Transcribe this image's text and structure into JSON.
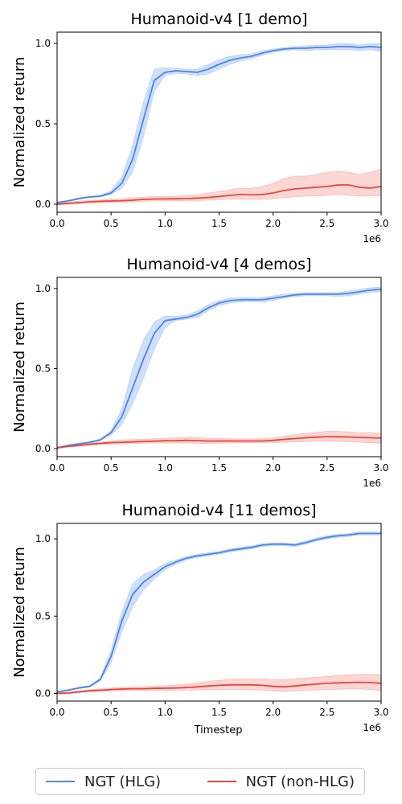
{
  "chart_data": [
    {
      "type": "line",
      "title": "Humanoid-v4 [1 demo]",
      "xlabel": "",
      "ylabel": "Normalized return",
      "x_offset_label": "1e6",
      "xlim": [
        0,
        3.0
      ],
      "ylim": [
        -0.05,
        1.07
      ],
      "xticks": [
        "0.0",
        "0.5",
        "1.0",
        "1.5",
        "2.0",
        "2.5",
        "3.0"
      ],
      "yticks": [
        "0.0",
        "0.5",
        "1.0"
      ],
      "series": [
        {
          "name": "NGT (HLG)",
          "x": [
            0,
            0.1,
            0.2,
            0.3,
            0.4,
            0.5,
            0.6,
            0.7,
            0.8,
            0.9,
            1.0,
            1.1,
            1.2,
            1.3,
            1.4,
            1.5,
            1.6,
            1.7,
            1.8,
            1.9,
            2.0,
            2.1,
            2.2,
            2.3,
            2.4,
            2.5,
            2.6,
            2.7,
            2.8,
            2.9,
            3.0
          ],
          "y": [
            0.01,
            0.02,
            0.035,
            0.045,
            0.05,
            0.07,
            0.13,
            0.28,
            0.53,
            0.77,
            0.82,
            0.83,
            0.825,
            0.82,
            0.84,
            0.87,
            0.895,
            0.91,
            0.92,
            0.94,
            0.955,
            0.965,
            0.97,
            0.97,
            0.975,
            0.975,
            0.98,
            0.98,
            0.975,
            0.98,
            0.975
          ],
          "lower": [
            0.005,
            0.015,
            0.03,
            0.04,
            0.045,
            0.06,
            0.1,
            0.2,
            0.42,
            0.7,
            0.8,
            0.815,
            0.81,
            0.8,
            0.81,
            0.84,
            0.87,
            0.89,
            0.905,
            0.925,
            0.945,
            0.955,
            0.96,
            0.955,
            0.96,
            0.96,
            0.96,
            0.96,
            0.955,
            0.96,
            0.95
          ],
          "upper": [
            0.015,
            0.025,
            0.04,
            0.05,
            0.055,
            0.085,
            0.17,
            0.37,
            0.64,
            0.84,
            0.85,
            0.845,
            0.84,
            0.84,
            0.87,
            0.9,
            0.92,
            0.93,
            0.935,
            0.955,
            0.965,
            0.975,
            0.98,
            0.985,
            0.99,
            0.99,
            1.0,
            1.0,
            0.99,
            1.0,
            1.0
          ]
        },
        {
          "name": "NGT (non-HLG)",
          "x": [
            0,
            0.1,
            0.2,
            0.3,
            0.4,
            0.5,
            0.6,
            0.7,
            0.8,
            0.9,
            1.0,
            1.1,
            1.2,
            1.3,
            1.4,
            1.5,
            1.6,
            1.7,
            1.8,
            1.9,
            2.0,
            2.1,
            2.2,
            2.3,
            2.4,
            2.5,
            2.6,
            2.7,
            2.8,
            2.9,
            3.0
          ],
          "y": [
            0.0,
            0.005,
            0.01,
            0.015,
            0.018,
            0.02,
            0.022,
            0.025,
            0.03,
            0.032,
            0.033,
            0.034,
            0.035,
            0.038,
            0.042,
            0.048,
            0.055,
            0.06,
            0.058,
            0.06,
            0.07,
            0.085,
            0.095,
            0.1,
            0.105,
            0.11,
            0.12,
            0.12,
            0.105,
            0.1,
            0.11
          ],
          "lower": [
            -0.005,
            0.0,
            0.003,
            0.008,
            0.01,
            0.01,
            0.012,
            0.015,
            0.018,
            0.02,
            0.02,
            0.02,
            0.022,
            0.023,
            0.025,
            0.028,
            0.03,
            0.032,
            0.03,
            0.03,
            0.035,
            0.04,
            0.045,
            0.05,
            0.05,
            0.055,
            0.06,
            0.055,
            0.05,
            0.05,
            0.055
          ],
          "upper": [
            0.005,
            0.01,
            0.02,
            0.025,
            0.028,
            0.032,
            0.035,
            0.04,
            0.045,
            0.048,
            0.05,
            0.05,
            0.055,
            0.06,
            0.07,
            0.08,
            0.09,
            0.1,
            0.1,
            0.11,
            0.13,
            0.16,
            0.175,
            0.175,
            0.185,
            0.2,
            0.205,
            0.2,
            0.185,
            0.2,
            0.22
          ]
        }
      ]
    },
    {
      "type": "line",
      "title": "Humanoid-v4 [4 demos]",
      "xlabel": "",
      "ylabel": "Normalized return",
      "x_offset_label": "1e6",
      "xlim": [
        0,
        3.0
      ],
      "ylim": [
        -0.05,
        1.07
      ],
      "xticks": [
        "0.0",
        "0.5",
        "1.0",
        "1.5",
        "2.0",
        "2.5",
        "3.0"
      ],
      "yticks": [
        "0.0",
        "0.5",
        "1.0"
      ],
      "series": [
        {
          "name": "NGT (HLG)",
          "x": [
            0,
            0.1,
            0.2,
            0.3,
            0.4,
            0.5,
            0.6,
            0.7,
            0.8,
            0.9,
            1.0,
            1.1,
            1.2,
            1.3,
            1.4,
            1.5,
            1.6,
            1.7,
            1.8,
            1.9,
            2.0,
            2.1,
            2.2,
            2.3,
            2.4,
            2.5,
            2.6,
            2.7,
            2.8,
            2.9,
            3.0
          ],
          "y": [
            0.005,
            0.02,
            0.03,
            0.04,
            0.055,
            0.1,
            0.2,
            0.38,
            0.56,
            0.72,
            0.8,
            0.81,
            0.82,
            0.84,
            0.88,
            0.91,
            0.925,
            0.93,
            0.93,
            0.93,
            0.94,
            0.95,
            0.96,
            0.965,
            0.965,
            0.965,
            0.965,
            0.97,
            0.98,
            0.99,
            0.995
          ],
          "lower": [
            0.0,
            0.015,
            0.025,
            0.035,
            0.05,
            0.085,
            0.15,
            0.28,
            0.44,
            0.62,
            0.76,
            0.8,
            0.81,
            0.82,
            0.86,
            0.895,
            0.91,
            0.915,
            0.92,
            0.915,
            0.925,
            0.94,
            0.95,
            0.955,
            0.955,
            0.955,
            0.95,
            0.955,
            0.965,
            0.975,
            0.98
          ],
          "upper": [
            0.01,
            0.025,
            0.035,
            0.045,
            0.06,
            0.115,
            0.25,
            0.5,
            0.68,
            0.79,
            0.83,
            0.825,
            0.835,
            0.86,
            0.9,
            0.925,
            0.94,
            0.945,
            0.945,
            0.945,
            0.955,
            0.965,
            0.97,
            0.975,
            0.975,
            0.975,
            0.975,
            0.985,
            0.995,
            1.005,
            1.01
          ]
        },
        {
          "name": "NGT (non-HLG)",
          "x": [
            0,
            0.1,
            0.2,
            0.3,
            0.4,
            0.5,
            0.6,
            0.7,
            0.8,
            0.9,
            1.0,
            1.1,
            1.2,
            1.3,
            1.4,
            1.5,
            1.6,
            1.7,
            1.8,
            1.9,
            2.0,
            2.1,
            2.2,
            2.3,
            2.4,
            2.5,
            2.6,
            2.7,
            2.8,
            2.9,
            3.0
          ],
          "y": [
            0.005,
            0.015,
            0.02,
            0.028,
            0.033,
            0.038,
            0.04,
            0.042,
            0.045,
            0.047,
            0.05,
            0.05,
            0.052,
            0.05,
            0.048,
            0.048,
            0.048,
            0.048,
            0.048,
            0.048,
            0.052,
            0.058,
            0.063,
            0.068,
            0.072,
            0.075,
            0.074,
            0.073,
            0.07,
            0.068,
            0.066
          ],
          "lower": [
            0.0,
            0.01,
            0.015,
            0.02,
            0.025,
            0.028,
            0.03,
            0.032,
            0.034,
            0.035,
            0.036,
            0.035,
            0.035,
            0.034,
            0.034,
            0.035,
            0.035,
            0.036,
            0.036,
            0.036,
            0.038,
            0.04,
            0.042,
            0.044,
            0.046,
            0.046,
            0.045,
            0.044,
            0.04,
            0.037,
            0.033
          ],
          "upper": [
            0.01,
            0.02,
            0.028,
            0.035,
            0.042,
            0.05,
            0.055,
            0.057,
            0.06,
            0.062,
            0.066,
            0.068,
            0.072,
            0.07,
            0.065,
            0.063,
            0.062,
            0.061,
            0.061,
            0.062,
            0.068,
            0.078,
            0.088,
            0.095,
            0.102,
            0.108,
            0.108,
            0.105,
            0.1,
            0.1,
            0.098
          ]
        }
      ]
    },
    {
      "type": "line",
      "title": "Humanoid-v4 [11 demos]",
      "xlabel": "Timestep",
      "ylabel": "Normalized return",
      "x_offset_label": "1e6",
      "xlim": [
        0,
        3.0
      ],
      "ylim": [
        -0.05,
        1.1
      ],
      "xticks": [
        "0.0",
        "0.5",
        "1.0",
        "1.5",
        "2.0",
        "2.5",
        "3.0"
      ],
      "yticks": [
        "0.0",
        "0.5",
        "1.0"
      ],
      "series": [
        {
          "name": "NGT (HLG)",
          "x": [
            0,
            0.1,
            0.2,
            0.3,
            0.4,
            0.5,
            0.6,
            0.7,
            0.8,
            0.9,
            1.0,
            1.1,
            1.2,
            1.3,
            1.4,
            1.5,
            1.6,
            1.7,
            1.8,
            1.9,
            2.0,
            2.1,
            2.2,
            2.3,
            2.4,
            2.5,
            2.6,
            2.7,
            2.8,
            2.9,
            3.0
          ],
          "y": [
            0.01,
            0.02,
            0.035,
            0.045,
            0.09,
            0.24,
            0.47,
            0.64,
            0.72,
            0.77,
            0.82,
            0.85,
            0.875,
            0.89,
            0.9,
            0.91,
            0.925,
            0.935,
            0.945,
            0.96,
            0.965,
            0.965,
            0.96,
            0.975,
            0.995,
            1.01,
            1.02,
            1.025,
            1.035,
            1.035,
            1.035
          ],
          "lower": [
            0.005,
            0.015,
            0.03,
            0.04,
            0.08,
            0.2,
            0.4,
            0.56,
            0.67,
            0.74,
            0.8,
            0.835,
            0.865,
            0.88,
            0.89,
            0.9,
            0.915,
            0.925,
            0.935,
            0.95,
            0.955,
            0.955,
            0.95,
            0.965,
            0.985,
            1.0,
            1.01,
            1.015,
            1.025,
            1.025,
            1.025
          ],
          "upper": [
            0.015,
            0.025,
            0.04,
            0.05,
            0.1,
            0.28,
            0.53,
            0.71,
            0.77,
            0.8,
            0.84,
            0.865,
            0.885,
            0.9,
            0.91,
            0.92,
            0.935,
            0.945,
            0.955,
            0.97,
            0.975,
            0.975,
            0.97,
            0.985,
            1.005,
            1.02,
            1.03,
            1.035,
            1.045,
            1.045,
            1.045
          ]
        },
        {
          "name": "NGT (non-HLG)",
          "x": [
            0,
            0.1,
            0.2,
            0.3,
            0.4,
            0.5,
            0.6,
            0.7,
            0.8,
            0.9,
            1.0,
            1.1,
            1.2,
            1.3,
            1.4,
            1.5,
            1.6,
            1.7,
            1.8,
            1.9,
            2.0,
            2.1,
            2.2,
            2.3,
            2.4,
            2.5,
            2.6,
            2.7,
            2.8,
            2.9,
            3.0
          ],
          "y": [
            0.0,
            0.002,
            0.01,
            0.017,
            0.02,
            0.025,
            0.028,
            0.03,
            0.03,
            0.032,
            0.033,
            0.035,
            0.038,
            0.042,
            0.048,
            0.052,
            0.055,
            0.055,
            0.055,
            0.052,
            0.045,
            0.042,
            0.048,
            0.055,
            0.06,
            0.065,
            0.068,
            0.07,
            0.072,
            0.07,
            0.065
          ],
          "lower": [
            -0.005,
            -0.003,
            0.004,
            0.01,
            0.012,
            0.015,
            0.017,
            0.018,
            0.018,
            0.019,
            0.019,
            0.02,
            0.021,
            0.022,
            0.024,
            0.025,
            0.026,
            0.025,
            0.024,
            0.02,
            0.015,
            0.012,
            0.015,
            0.02,
            0.022,
            0.025,
            0.027,
            0.028,
            0.028,
            0.024,
            0.018
          ],
          "upper": [
            0.005,
            0.008,
            0.016,
            0.024,
            0.028,
            0.035,
            0.04,
            0.043,
            0.044,
            0.047,
            0.05,
            0.055,
            0.06,
            0.068,
            0.078,
            0.085,
            0.09,
            0.092,
            0.095,
            0.095,
            0.09,
            0.09,
            0.095,
            0.1,
            0.105,
            0.11,
            0.115,
            0.12,
            0.125,
            0.125,
            0.12
          ]
        }
      ]
    }
  ],
  "legend": {
    "items": [
      {
        "label": "NGT (HLG)",
        "color": "#4a86e8"
      },
      {
        "label": "NGT (non-HLG)",
        "color": "#e8453c"
      }
    ]
  },
  "colors": {
    "hlg_line": "#4a86e8",
    "hlg_band": "#a8c4f5",
    "non_hlg_line": "#e8453c",
    "non_hlg_band": "#f7b4ae"
  }
}
